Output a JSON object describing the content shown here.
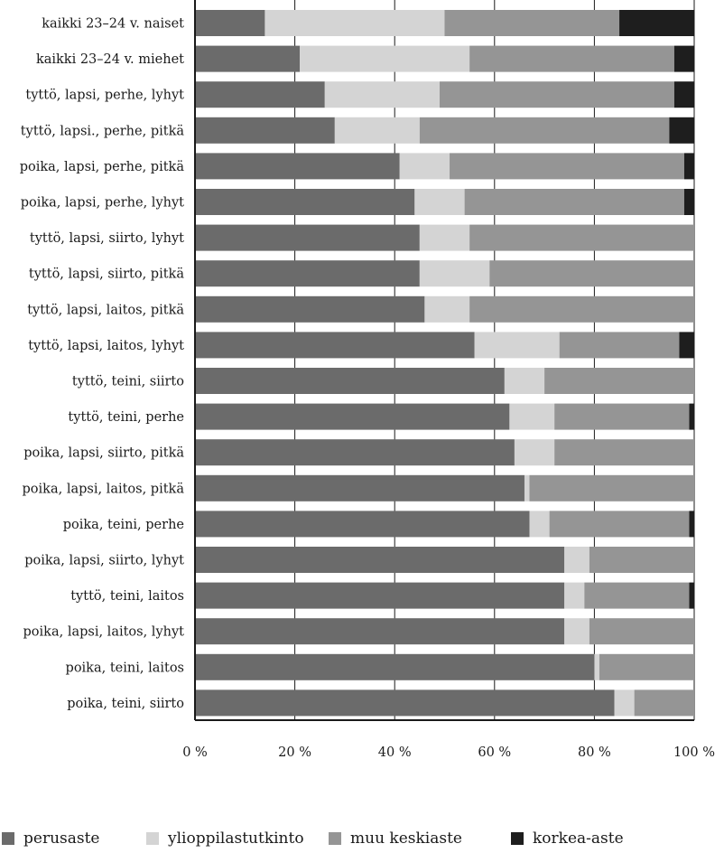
{
  "chart_data": {
    "type": "bar",
    "orientation": "horizontal",
    "stacked": true,
    "percent_stacked": true,
    "categories": [
      "kaikki 23–24 v. naiset",
      "kaikki 23–24 v. miehet",
      "tyttö, lapsi, perhe, lyhyt",
      "tyttö, lapsi., perhe, pitkä",
      "poika, lapsi, perhe, pitkä",
      "poika, lapsi, perhe, lyhyt",
      "tyttö, lapsi, siirto, lyhyt",
      "tyttö, lapsi, siirto, pitkä",
      "tyttö, lapsi, laitos, pitkä",
      "tyttö, lapsi, laitos, lyhyt",
      "tyttö, teini, siirto",
      "tyttö, teini, perhe",
      "poika, lapsi, siirto, pitkä",
      "poika, lapsi, laitos, pitkä",
      "poika, teini, perhe",
      "poika, lapsi, siirto, lyhyt",
      "tyttö, teini, laitos",
      "poika, lapsi, laitos, lyhyt",
      "poika, teini, laitos",
      "poika, teini, siirto"
    ],
    "series": [
      {
        "name": "perusaste",
        "color": "#6b6b6b",
        "values": [
          14,
          21,
          26,
          28,
          41,
          44,
          45,
          45,
          46,
          56,
          62,
          63,
          64,
          66,
          67,
          74,
          74,
          74,
          80,
          84
        ]
      },
      {
        "name": "ylioppilastutkinto",
        "color": "#d4d4d4",
        "values": [
          36,
          34,
          23,
          17,
          10,
          10,
          10,
          14,
          9,
          17,
          8,
          9,
          8,
          1,
          4,
          5,
          4,
          5,
          1,
          4
        ]
      },
      {
        "name": "muu keskiaste",
        "color": "#959595",
        "values": [
          35,
          41,
          47,
          50,
          47,
          44,
          45,
          41,
          45,
          24,
          30,
          27,
          28,
          33,
          28,
          21,
          21,
          21,
          19,
          12
        ]
      },
      {
        "name": "korkea-aste",
        "color": "#1e1e1e",
        "values": [
          15,
          4,
          4,
          5,
          2,
          2,
          0,
          0,
          0,
          3,
          0,
          1,
          0,
          0,
          1,
          0,
          1,
          0,
          0,
          0
        ]
      }
    ],
    "x_ticks": [
      "0 %",
      "20 %",
      "40 %",
      "60 %",
      "80 %",
      "100 %"
    ],
    "xlim": [
      0,
      100
    ],
    "xlabel": "",
    "ylabel": "",
    "title": "",
    "grid": "vertical",
    "legend_position": "bottom"
  }
}
